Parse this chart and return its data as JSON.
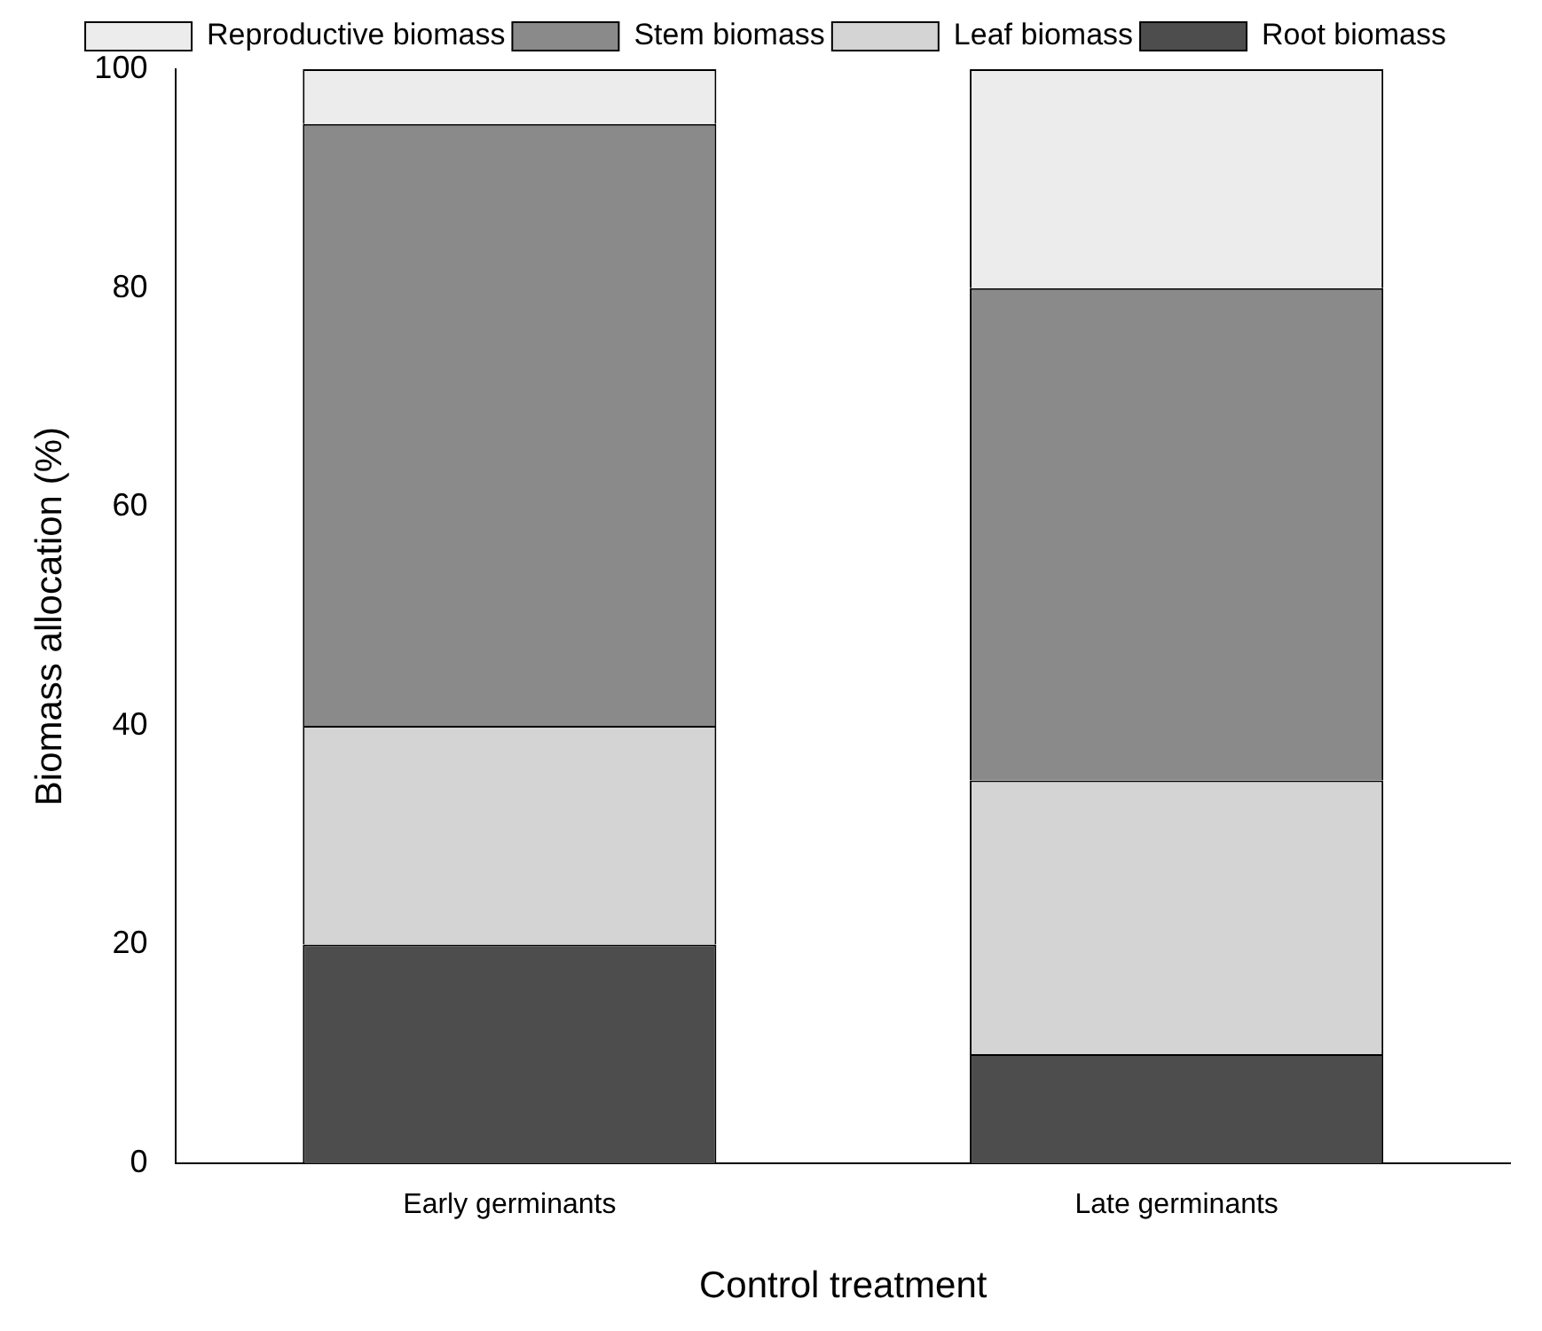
{
  "chart_data": {
    "type": "bar",
    "stacked": true,
    "xlabel": "Control treatment",
    "ylabel": "Biomass allocation (%)",
    "categories": [
      "Early germinants",
      "Late germinants"
    ],
    "series": [
      {
        "name": "Root biomass",
        "color": "#4d4d4d",
        "values": [
          20,
          10
        ]
      },
      {
        "name": "Leaf biomass",
        "color": "#d4d4d4",
        "values": [
          20,
          25
        ]
      },
      {
        "name": "Stem biomass",
        "color": "#8a8a8a",
        "values": [
          55,
          45
        ]
      },
      {
        "name": "Reproductive biomass",
        "color": "#ececec",
        "values": [
          5,
          20
        ]
      }
    ],
    "ylim": [
      0,
      100
    ],
    "yticks": [
      0,
      20,
      40,
      60,
      80,
      100
    ],
    "grid": false,
    "legend": "top"
  }
}
